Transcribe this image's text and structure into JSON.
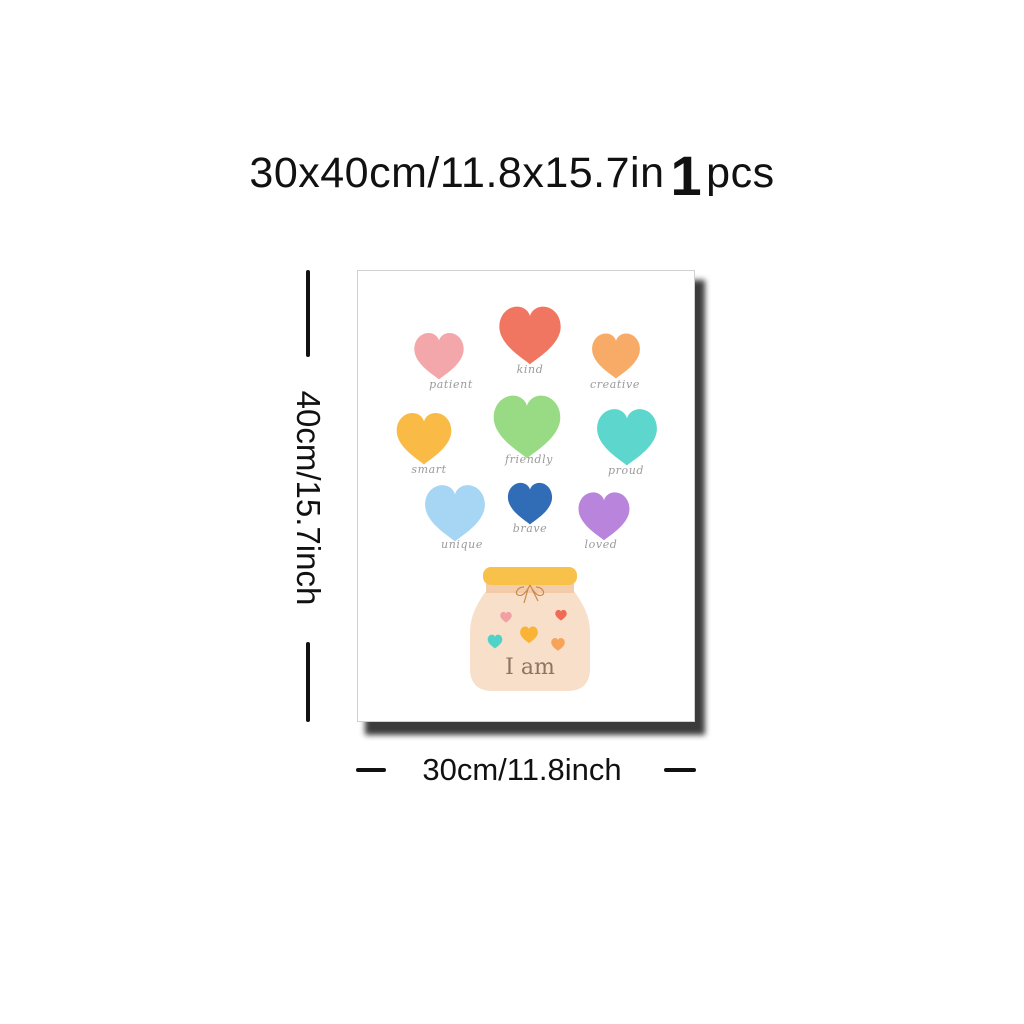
{
  "title": {
    "size_text": "30x40cm/11.8x15.7in",
    "qty_number": "1",
    "qty_unit": "pcs"
  },
  "dimensions": {
    "height_label": "40cm/15.7inch",
    "width_label": "30cm/11.8inch"
  },
  "poster": {
    "hearts": [
      {
        "word": "patient",
        "color": "#f2a0a4",
        "icon": "heart-icon"
      },
      {
        "word": "kind",
        "color": "#f06a55",
        "icon": "heart-icon"
      },
      {
        "word": "creative",
        "color": "#f7a45a",
        "icon": "heart-icon"
      },
      {
        "word": "smart",
        "color": "#f9b436",
        "icon": "heart-icon"
      },
      {
        "word": "friendly",
        "color": "#8fd87a",
        "icon": "heart-icon"
      },
      {
        "word": "proud",
        "color": "#4fd3c9",
        "icon": "heart-icon"
      },
      {
        "word": "unique",
        "color": "#9ed3f2",
        "icon": "heart-icon"
      },
      {
        "word": "brave",
        "color": "#1f5fb0",
        "icon": "heart-icon"
      },
      {
        "word": "loved",
        "color": "#b27ad9",
        "icon": "heart-icon"
      }
    ],
    "jar": {
      "text": "I am",
      "icon": "jar-icon",
      "body_color": "#f7d9c0",
      "lid_color": "#f8c14a"
    }
  }
}
